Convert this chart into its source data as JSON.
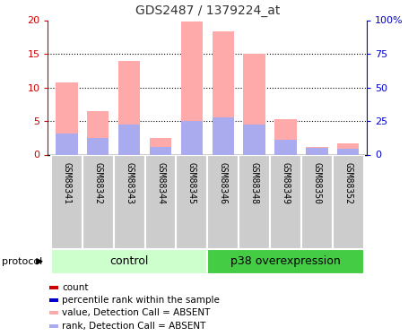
{
  "title": "GDS2487 / 1379224_at",
  "samples": [
    "GSM88341",
    "GSM88342",
    "GSM88343",
    "GSM88344",
    "GSM88345",
    "GSM88346",
    "GSM88348",
    "GSM88349",
    "GSM88350",
    "GSM88352"
  ],
  "pink_values": [
    10.8,
    6.5,
    14.0,
    2.5,
    19.8,
    18.4,
    15.0,
    5.3,
    1.2,
    1.7
  ],
  "blue_values": [
    3.2,
    2.5,
    4.5,
    1.1,
    5.0,
    5.5,
    4.5,
    2.2,
    1.0,
    0.9
  ],
  "groups": [
    {
      "label": "control",
      "start": 0,
      "end": 5,
      "color": "#ccffcc"
    },
    {
      "label": "p38 overexpression",
      "start": 5,
      "end": 10,
      "color": "#44cc44"
    }
  ],
  "ylim_left": [
    0,
    20
  ],
  "ylim_right": [
    0,
    100
  ],
  "yticks_left": [
    0,
    5,
    10,
    15,
    20
  ],
  "yticks_right": [
    0,
    25,
    50,
    75,
    100
  ],
  "ytick_labels_right": [
    "0",
    "25",
    "50",
    "75",
    "100%"
  ],
  "pink_color": "#ffaaaa",
  "blue_color": "#aaaaee",
  "title_color": "#333333",
  "left_axis_color": "#cc0000",
  "right_axis_color": "#0000cc",
  "grid_color": "#333333",
  "protocol_label": "protocol",
  "legend_items": [
    {
      "color": "#cc0000",
      "label": "count"
    },
    {
      "color": "#0000cc",
      "label": "percentile rank within the sample"
    },
    {
      "color": "#ffaaaa",
      "label": "value, Detection Call = ABSENT"
    },
    {
      "color": "#aaaaee",
      "label": "rank, Detection Call = ABSENT"
    }
  ],
  "bar_width": 0.7,
  "sample_box_color": "#cccccc",
  "sample_box_edge": "#ffffff"
}
